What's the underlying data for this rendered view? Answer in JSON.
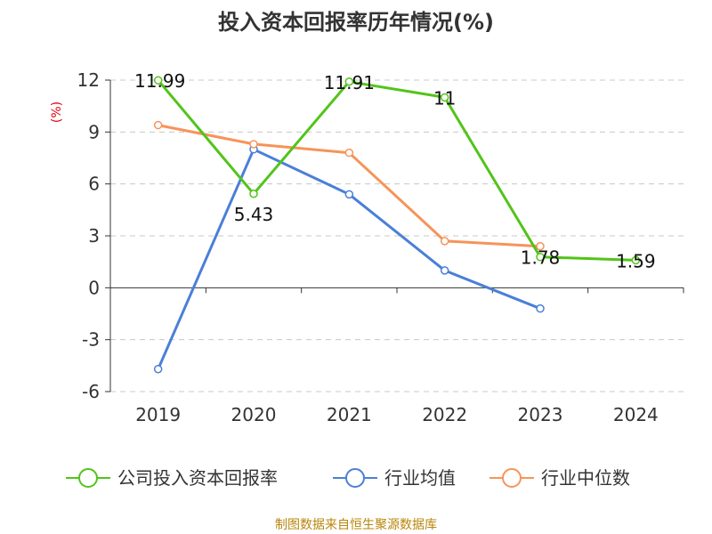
{
  "chart_data": {
    "type": "line",
    "title": "投入资本回报率历年情况(%)",
    "ylabel": "(%)",
    "categories": [
      "2019",
      "2020",
      "2021",
      "2022",
      "2023",
      "2024"
    ],
    "ylim": [
      -6,
      12
    ],
    "yticks": [
      12,
      9,
      6,
      3,
      0,
      -3,
      -6
    ],
    "grid": true,
    "legend_position": "bottom",
    "series": [
      {
        "name": "公司投入资本回报率",
        "color": "#52c41a",
        "values": [
          11.99,
          5.43,
          11.91,
          11,
          1.78,
          1.59
        ],
        "labels": [
          "11.99",
          "5.43",
          "11.91",
          "11",
          "1.78",
          "1.59"
        ]
      },
      {
        "name": "行业均值",
        "color": "#4a7fd9",
        "values": [
          -4.7,
          8.0,
          5.4,
          1.0,
          -1.2,
          null
        ]
      },
      {
        "name": "行业中位数",
        "color": "#f79359",
        "values": [
          9.4,
          8.3,
          7.8,
          2.7,
          2.4,
          null
        ]
      }
    ]
  },
  "source": "制图数据来自恒生聚源数据库"
}
